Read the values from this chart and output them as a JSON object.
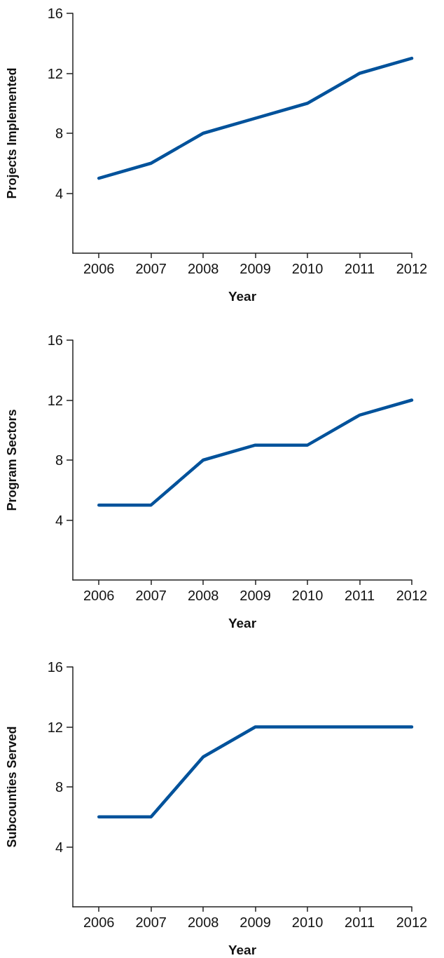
{
  "chart_data": [
    {
      "type": "line",
      "xlabel": "Year",
      "ylabel": "Projects Implemented",
      "x": [
        2006,
        2007,
        2008,
        2009,
        2010,
        2011,
        2012
      ],
      "xlim": [
        2005.5,
        2012
      ],
      "xticks": [
        2006,
        2007,
        2008,
        2009,
        2010,
        2011,
        2012
      ],
      "ylim": [
        0,
        16
      ],
      "yticks": [
        4,
        8,
        12,
        16
      ],
      "marker": "none",
      "line_style": "solid",
      "series": [
        {
          "color": "#00529b",
          "values": [
            5,
            6,
            8,
            9,
            10,
            12,
            13
          ]
        }
      ]
    },
    {
      "type": "line",
      "xlabel": "Year",
      "ylabel": "Program Sectors",
      "x": [
        2006,
        2007,
        2008,
        2009,
        2010,
        2011,
        2012
      ],
      "xlim": [
        2005.5,
        2012
      ],
      "xticks": [
        2006,
        2007,
        2008,
        2009,
        2010,
        2011,
        2012
      ],
      "ylim": [
        0,
        16
      ],
      "yticks": [
        4,
        8,
        12,
        16
      ],
      "marker": "none",
      "line_style": "solid",
      "series": [
        {
          "color": "#00529b",
          "values": [
            5,
            5,
            8,
            9,
            9,
            11,
            12
          ]
        }
      ]
    },
    {
      "type": "line",
      "xlabel": "Year",
      "ylabel": "Subcounties Served",
      "x": [
        2006,
        2007,
        2008,
        2009,
        2010,
        2011,
        2012
      ],
      "xlim": [
        2005.5,
        2012
      ],
      "xticks": [
        2006,
        2007,
        2008,
        2009,
        2010,
        2011,
        2012
      ],
      "ylim": [
        0,
        16
      ],
      "yticks": [
        4,
        8,
        12,
        16
      ],
      "marker": "none",
      "line_style": "solid",
      "series": [
        {
          "color": "#00529b",
          "values": [
            6,
            6,
            10,
            12,
            12,
            12,
            12
          ]
        }
      ]
    }
  ]
}
